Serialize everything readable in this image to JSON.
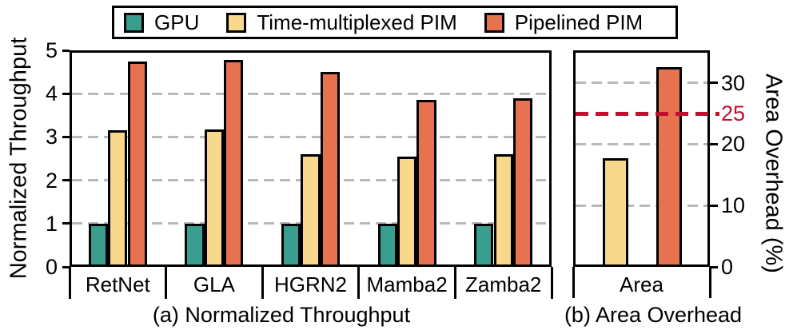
{
  "legend": {
    "items": [
      {
        "label": "GPU",
        "color": "#3a9e8e",
        "swatch_icon": "teal-square-swatch"
      },
      {
        "label": "Time-multiplexed PIM",
        "color": "#f8d98b",
        "swatch_icon": "yellow-square-swatch"
      },
      {
        "label": "Pipelined PIM",
        "color": "#e7724f",
        "swatch_icon": "orange-square-swatch"
      }
    ]
  },
  "colors": {
    "gpu": "#3a9e8e",
    "time_multiplexed_pim": "#f8d98b",
    "pipelined_pim": "#e7724f",
    "reference_line": "#c00f2e",
    "gridline": "#b9b9b9",
    "frame": "#000000"
  },
  "chart_data": [
    {
      "type": "bar",
      "title": "(a) Normalized Throughput",
      "ylabel": "Normalized Throughput",
      "categories": [
        "RetNet",
        "GLA",
        "HGRN2",
        "Mamba2",
        "Zamba2"
      ],
      "series": [
        {
          "name": "GPU",
          "color": "#3a9e8e",
          "values": [
            1.0,
            1.0,
            1.0,
            1.0,
            1.0
          ]
        },
        {
          "name": "Time-multiplexed PIM",
          "color": "#f8d98b",
          "values": [
            3.15,
            3.17,
            2.6,
            2.55,
            2.6
          ]
        },
        {
          "name": "Pipelined PIM",
          "color": "#e7724f",
          "values": [
            4.75,
            4.78,
            4.5,
            3.85,
            3.9
          ]
        }
      ],
      "ylim": [
        0,
        5
      ],
      "yticks": [
        0,
        1,
        2,
        3,
        4,
        5
      ],
      "grid": true,
      "legend_position": "top",
      "axis_side": "left"
    },
    {
      "type": "bar",
      "title": "(b) Area Overhead",
      "ylabel": "Area Overhead (%)",
      "categories": [
        "Area"
      ],
      "series": [
        {
          "name": "Time-multiplexed PIM",
          "color": "#f8d98b",
          "values": [
            17.7
          ]
        },
        {
          "name": "Pipelined PIM",
          "color": "#e7724f",
          "values": [
            32.5
          ]
        }
      ],
      "ylim": [
        0,
        35.3
      ],
      "yticks": [
        0,
        10,
        20,
        30
      ],
      "reference_line": {
        "value": 25,
        "label": "25",
        "color": "#c00f2e",
        "style": "dashed"
      },
      "grid": true,
      "axis_side": "right"
    }
  ]
}
